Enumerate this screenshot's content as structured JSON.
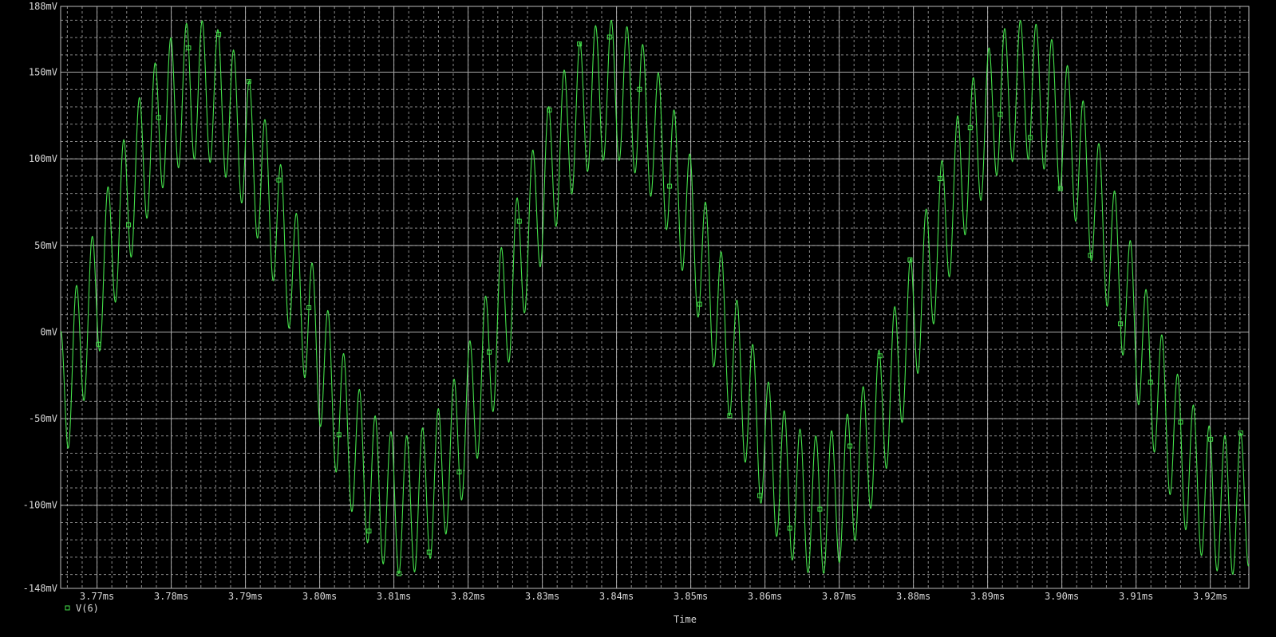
{
  "chart_data": {
    "type": "line",
    "xlabel": "Time",
    "ylabel": "",
    "xlim": [
      3.7651,
      3.9252
    ],
    "ylim": [
      -148,
      188
    ],
    "x_unit": "ms",
    "y_unit": "mV",
    "x_ticks": [
      "3.77ms",
      "3.78ms",
      "3.79ms",
      "3.80ms",
      "3.81ms",
      "3.82ms",
      "3.83ms",
      "3.84ms",
      "3.85ms",
      "3.86ms",
      "3.87ms",
      "3.88ms",
      "3.89ms",
      "3.90ms",
      "3.91ms",
      "3.92ms"
    ],
    "x_tick_values": [
      3.77,
      3.78,
      3.79,
      3.8,
      3.81,
      3.82,
      3.83,
      3.84,
      3.85,
      3.86,
      3.87,
      3.88,
      3.89,
      3.9,
      3.91,
      3.92
    ],
    "y_ticks": [
      "188mV",
      "150mV",
      "100mV",
      "50mV",
      "0mV",
      "-50mV",
      "-100mV",
      "-148mV"
    ],
    "y_tick_values": [
      188,
      150,
      100,
      50,
      0,
      -50,
      -100,
      -148
    ],
    "grid": true,
    "legend_placement": "bottom-left",
    "series": [
      {
        "name": "V(6)",
        "color": "#44e04a",
        "marker": "hollow-square",
        "model": "sine + high-frequency ripple",
        "fundamental_amplitude_mV": 120,
        "fundamental_period_ms": 0.0556,
        "fundamental_phase_peak_at_ms": 3.7836,
        "ripple_amplitude_mV": 40,
        "ripple_period_ms": 0.00212,
        "ripple_peak_at_ms": 3.78205,
        "offset_mV": 20
      }
    ]
  }
}
